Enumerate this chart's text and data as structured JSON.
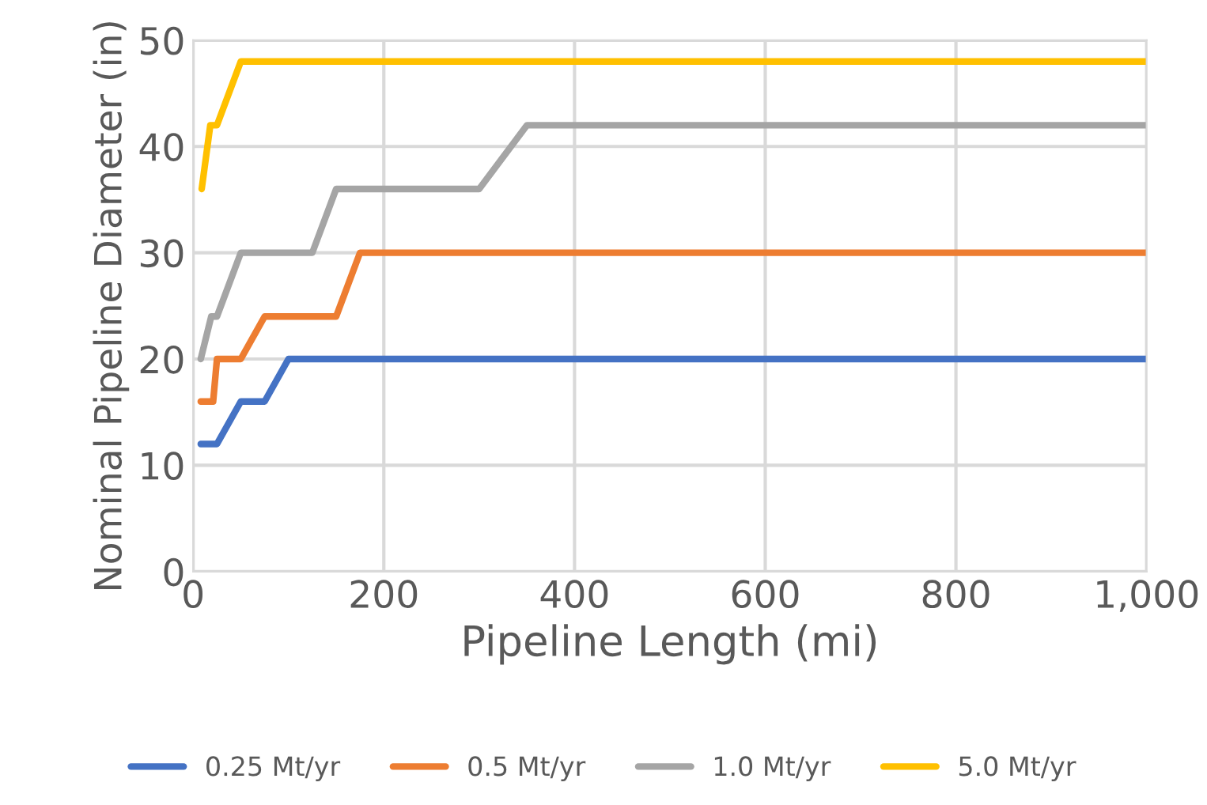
{
  "chart_data": {
    "type": "line",
    "xlabel": "Pipeline Length (mi)",
    "ylabel": "Nominal Pipeline Diameter (in)",
    "xlim": [
      0,
      1000
    ],
    "xticks": [
      0,
      200,
      400,
      600,
      800,
      {
        "value": 1000,
        "label": "1,000"
      }
    ],
    "ylim": [
      0,
      50
    ],
    "yticks": [
      0,
      10,
      20,
      30,
      40,
      50
    ],
    "grid": true,
    "legend": "bottom",
    "series": [
      {
        "name": "0.25 Mt/yr",
        "color": "#4472c4",
        "x": [
          8,
          25,
          50,
          75,
          100,
          1000
        ],
        "values": [
          12,
          12,
          16,
          16,
          20,
          20
        ]
      },
      {
        "name": "0.5 Mt/yr",
        "color": "#ed7d31",
        "x": [
          8,
          21,
          25,
          50,
          75,
          150,
          175,
          1000
        ],
        "values": [
          16,
          16,
          20,
          20,
          24,
          24,
          30,
          30
        ]
      },
      {
        "name": "1.0 Mt/yr",
        "color": "#a5a5a5",
        "x": [
          8,
          19,
          25,
          50,
          125,
          150,
          300,
          350,
          1000
        ],
        "values": [
          20,
          24,
          24,
          30,
          30,
          36,
          36,
          42,
          42
        ]
      },
      {
        "name": "5.0 Mt/yr",
        "color": "#ffc000",
        "x": [
          9,
          18,
          25,
          50,
          1000
        ],
        "values": [
          36,
          42,
          42,
          48,
          48
        ]
      }
    ]
  }
}
